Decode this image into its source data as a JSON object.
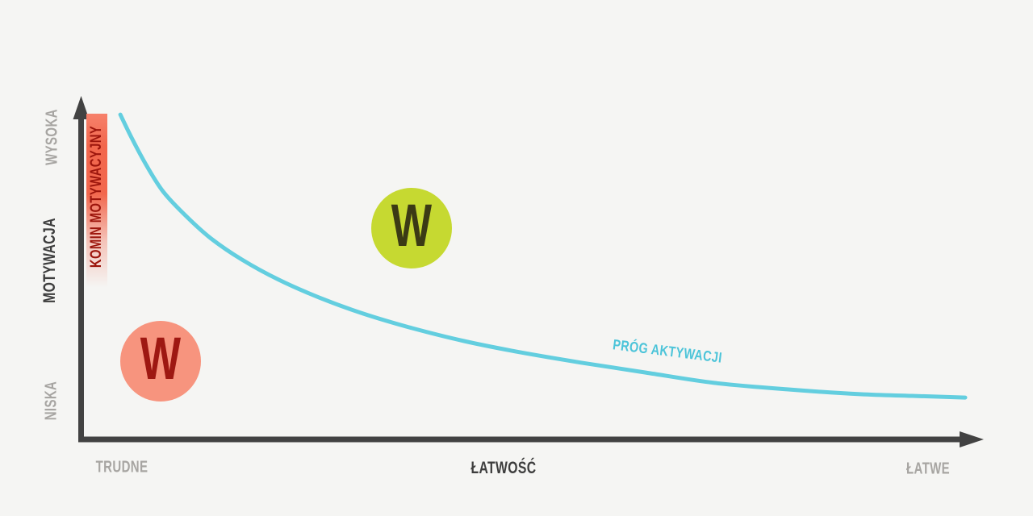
{
  "chart_data": {
    "type": "line",
    "title": "",
    "grid": false,
    "legend": "none",
    "x_axis": {
      "title": "ŁATWOŚĆ",
      "min_label": "TRUDNE",
      "max_label": "ŁATWE",
      "range": [
        0,
        1
      ],
      "ticks": "none"
    },
    "y_axis": {
      "title": "MOTYWACJA",
      "min_label": "NISKA",
      "max_label": "WYSOKA",
      "range": [
        0,
        1
      ],
      "ticks": "none"
    },
    "series": [
      {
        "name": "PRÓG AKTYWACJI",
        "type": "curve",
        "x": [
          0.044,
          0.057,
          0.073,
          0.092,
          0.117,
          0.145,
          0.179,
          0.22,
          0.265,
          0.314,
          0.368,
          0.426,
          0.489,
          0.556,
          0.628,
          0.704,
          0.785,
          0.866,
          0.924,
          0.983
        ],
        "y": [
          0.948,
          0.878,
          0.8,
          0.722,
          0.652,
          0.586,
          0.525,
          0.466,
          0.414,
          0.367,
          0.325,
          0.287,
          0.254,
          0.224,
          0.195,
          0.165,
          0.146,
          0.132,
          0.127,
          0.122
        ]
      }
    ],
    "annotations": {
      "chimney_label": "KOMIN MOTYWACYJNY",
      "markers": [
        {
          "label": "W",
          "x": 0.368,
          "y": 0.617,
          "variant": "above-threshold",
          "color": "#c6d931",
          "text_color": "#3b3a15"
        },
        {
          "label": "W",
          "x": 0.089,
          "y": 0.228,
          "variant": "below-threshold",
          "color": "#f7947e",
          "text_color": "#9e1812"
        }
      ]
    },
    "colors": {
      "background": "#f5f5f3",
      "axis": "#424242",
      "label_muted": "#a7a5a2",
      "label_strong": "#3d3d3d",
      "curve": "#63cedf",
      "curve_label": "#4cc4d9",
      "chimney": "#f2674d",
      "chimney_label": "#9c150c"
    }
  }
}
